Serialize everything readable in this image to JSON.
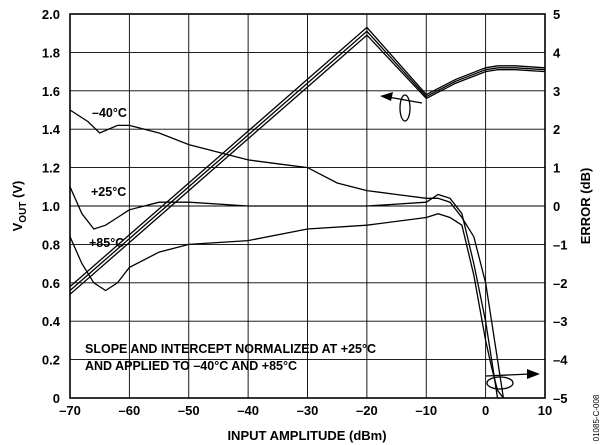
{
  "chart_data": {
    "type": "line",
    "xlabel": "INPUT AMPLITUDE (dBm)",
    "ylabel": {
      "main": "V",
      "sub": "OUT",
      "rest": " (V)"
    },
    "y2label": "ERROR (dB)",
    "xlim": [
      -70,
      10
    ],
    "ylim": [
      0,
      2.0
    ],
    "y2lim": [
      -5,
      5
    ],
    "x_ticks": [
      "–70",
      "–60",
      "–50",
      "–40",
      "–30",
      "–20",
      "–10",
      "0",
      "10"
    ],
    "y_ticks": [
      "0",
      "0.2",
      "0.4",
      "0.6",
      "0.8",
      "1.0",
      "1.2",
      "1.4",
      "1.6",
      "1.8",
      "2.0"
    ],
    "y2_ticks": [
      "–5",
      "–4",
      "–3",
      "–2",
      "–1",
      "0",
      "1",
      "2",
      "3",
      "4",
      "5"
    ],
    "grid": true,
    "annotations": {
      "temp_neg40": "–40°C",
      "temp_25": "+25°C",
      "temp_85": "+85°C",
      "note_line1": "SLOPE AND INTERCEPT NORMALIZED AT +25°C",
      "note_line2": "AND APPLIED TO –40°C AND +85°C",
      "figure_id": "01085-C-008"
    },
    "vout_series": [
      {
        "axis": "left",
        "x": [
          -70,
          -60,
          -50,
          -40,
          -30,
          -20,
          -10,
          -5,
          0,
          2,
          5,
          10
        ],
        "y": [
          0.54,
          0.81,
          1.08,
          1.35,
          1.62,
          1.89,
          1.56,
          1.64,
          1.7,
          1.71,
          1.71,
          1.7
        ]
      },
      {
        "axis": "left",
        "x": [
          -70,
          -60,
          -50,
          -40,
          -30,
          -20,
          -10,
          -5,
          0,
          2,
          5,
          10
        ],
        "y": [
          0.56,
          0.83,
          1.1,
          1.37,
          1.64,
          1.91,
          1.57,
          1.65,
          1.71,
          1.72,
          1.72,
          1.71
        ]
      },
      {
        "axis": "left",
        "x": [
          -70,
          -60,
          -50,
          -40,
          -30,
          -20,
          -10,
          -5,
          0,
          2,
          5,
          10
        ],
        "y": [
          0.58,
          0.85,
          1.12,
          1.39,
          1.66,
          1.93,
          1.58,
          1.66,
          1.72,
          1.73,
          1.73,
          1.72
        ]
      }
    ],
    "error_series": [
      {
        "axis": "right",
        "x": [
          -70,
          -67,
          -65,
          -62,
          -60,
          -55,
          -50,
          -45,
          -40,
          -35,
          -30,
          -25,
          -20,
          -15,
          -10,
          -8,
          -6,
          -4,
          -2,
          0,
          1,
          2,
          3
        ],
        "y": [
          2.5,
          2.2,
          1.9,
          2.1,
          2.1,
          1.9,
          1.6,
          1.4,
          1.2,
          1.1,
          1.0,
          0.6,
          0.4,
          0.3,
          0.2,
          0.2,
          0.1,
          -0.3,
          -0.8,
          -2.0,
          -3.0,
          -4.0,
          -5.0
        ]
      },
      {
        "axis": "right",
        "x": [
          -70,
          -68,
          -66,
          -64,
          -62,
          -60,
          -55,
          -50,
          -40,
          -30,
          -20,
          -10,
          -8,
          -6,
          -4,
          -2,
          0,
          1,
          2
        ],
        "y": [
          0.5,
          -0.2,
          -0.6,
          -0.5,
          -0.3,
          -0.1,
          0.1,
          0.1,
          0.0,
          0.0,
          0.0,
          0.1,
          0.3,
          0.2,
          -0.2,
          -1.5,
          -3.0,
          -4.0,
          -5.0
        ]
      },
      {
        "axis": "right",
        "x": [
          -70,
          -68,
          -66,
          -64,
          -62,
          -60,
          -55,
          -50,
          -40,
          -30,
          -20,
          -10,
          -8,
          -6,
          -4,
          -2,
          0,
          1,
          2,
          3
        ],
        "y": [
          -0.8,
          -1.5,
          -2.0,
          -2.2,
          -2.0,
          -1.6,
          -1.2,
          -1.0,
          -0.9,
          -0.6,
          -0.5,
          -0.3,
          -0.2,
          -0.3,
          -0.5,
          -1.8,
          -3.5,
          -4.2,
          -4.8,
          -5.0
        ]
      }
    ]
  }
}
